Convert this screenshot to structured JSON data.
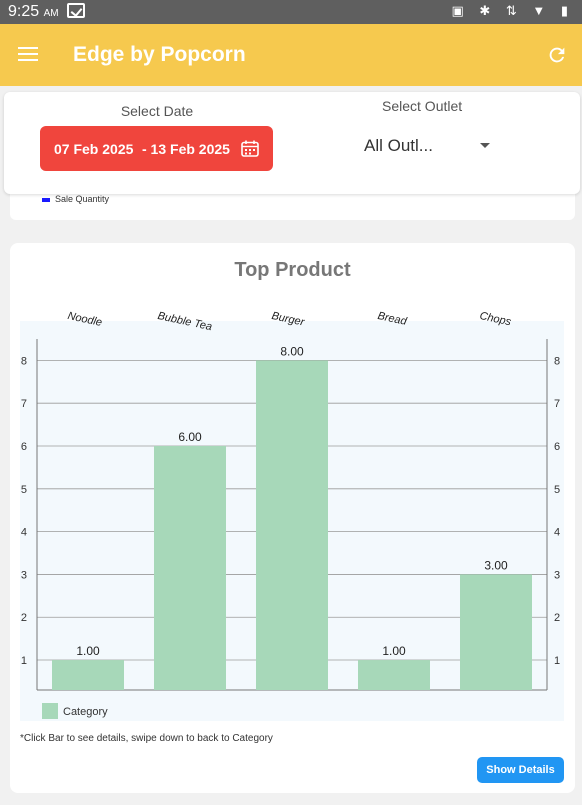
{
  "status": {
    "time": "9:25",
    "ampm": "AM",
    "icons": "cast-icon bluetooth-icon data-icon wifi-icon battery-icon"
  },
  "app_bar": {
    "title": "Edge by Popcorn"
  },
  "filters": {
    "date_label": "Select Date",
    "date_from": "07 Feb 2025",
    "date_to": "- 13 Feb 2025",
    "outlet_label": "Select Outlet",
    "outlet_value": "All Outl..."
  },
  "previous_card": {
    "legend_label": "Sale Quantity"
  },
  "colors": {
    "app_bar": "#f6c94e",
    "date_button": "#f0453d",
    "bar": "#a7d8b9",
    "show_button": "#2196f3"
  },
  "chart_data": {
    "type": "bar",
    "title": "Top Product",
    "categories": [
      "Noodle",
      "Bubble Tea",
      "Burger",
      "Bread",
      "Chops"
    ],
    "series": [
      {
        "name": "Category",
        "values": [
          1,
          6,
          8,
          1,
          3
        ]
      }
    ],
    "data_labels": [
      "1.00",
      "6.00",
      "8.00",
      "1.00",
      "3.00"
    ],
    "ylim": [
      0.3,
      8.5
    ],
    "yticks": [
      1,
      2,
      3,
      4,
      5,
      6,
      7,
      8
    ],
    "grid": true,
    "legend": "bottom-left"
  },
  "hint": "*Click Bar to see details, swipe down to back to Category",
  "buttons": {
    "show_details": "Show Details"
  }
}
